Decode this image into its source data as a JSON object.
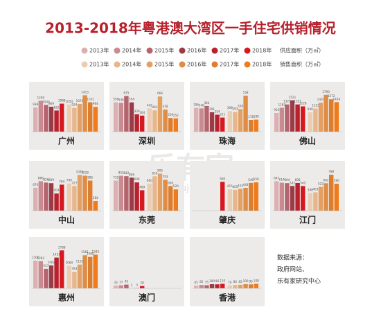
{
  "title": "2013-2018年粤港澳大湾区一手住宅供销情况",
  "legend": {
    "rows": [
      {
        "label": "供应面积（万㎡）",
        "items": [
          {
            "name": "2013年",
            "color": "#dcb0b3"
          },
          {
            "name": "2014年",
            "color": "#c98a90"
          },
          {
            "name": "2015年",
            "color": "#b4646d"
          },
          {
            "name": "2016年",
            "color": "#9c3b48"
          },
          {
            "name": "2017年",
            "color": "#b9212d"
          },
          {
            "name": "2018年",
            "color": "#d7191f"
          }
        ]
      },
      {
        "label": "销售面积（万㎡）",
        "items": [
          {
            "name": "2013年",
            "color": "#ebcdb1"
          },
          {
            "name": "2014年",
            "color": "#e7b68a"
          },
          {
            "name": "2015年",
            "color": "#e3a065"
          },
          {
            "name": "2016年",
            "color": "#df8d45"
          },
          {
            "name": "2017年",
            "color": "#dd7d2e"
          },
          {
            "name": "2018年",
            "color": "#ef7b1b"
          }
        ]
      }
    ]
  },
  "watermark": [
    "乐有家",
    "leyoujia.com"
  ],
  "source": [
    "数据来源：",
    "政府网站、",
    "乐有家研究中心"
  ],
  "chart_data": [
    {
      "type": "bar",
      "title": "广州",
      "ylim": [
        0,
        1560
      ],
      "supply": [
        938,
        1200,
        1040,
        969,
        822,
        1088
      ],
      "sales": [
        1054,
        924,
        1074,
        1415,
        1141,
        964
      ]
    },
    {
      "type": "bar",
      "title": "深圳",
      "ylim": [
        0,
        760
      ],
      "supply": [
        556,
        546,
        675,
        554,
        329,
        304
      ],
      "sales": [
        442,
        403,
        666,
        418,
        259,
        252
      ]
    },
    {
      "type": "bar",
      "title": "珠海",
      "ylim": [
        0,
        600
      ],
      "supply": [
        356,
        348,
        384,
        291,
        254,
        211
      ],
      "sales": [
        308,
        293,
        338,
        538,
        176,
        180
      ]
    },
    {
      "type": "bar",
      "title": "佛山",
      "ylim": [
        0,
        1950
      ],
      "supply": [
        910,
        1162,
        1321,
        1521,
        1321,
        1228
      ],
      "sales": [
        940,
        1123,
        1407,
        1790,
        1572,
        1434
      ]
    },
    {
      "type": "bar",
      "title": "中山",
      "ylim": [
        0,
        1180
      ],
      "supply": [
        676,
        866,
        826,
        809,
        504,
        764
      ],
      "sales": [
        799,
        727,
        1049,
        1028,
        885,
        284
      ]
    },
    {
      "type": "bar",
      "title": "东莞",
      "ylim": [
        0,
        980
      ],
      "supply": [
        735,
        852,
        842,
        806,
        690,
        499
      ],
      "sales": [
        660,
        839,
        905,
        753,
        600,
        520
      ]
    },
    {
      "type": "bar",
      "title": "肇庆",
      "ylim": [
        0,
        780
      ],
      "supply": [
        null,
        null,
        null,
        null,
        null,
        560
      ],
      "sales": [
        415,
        405,
        425,
        444,
        540,
        550
      ]
    },
    {
      "type": "bar",
      "title": "江门",
      "ylim": [
        0,
        880
      ],
      "supply": [
        647,
        614,
        604,
        542,
        608,
        540
      ],
      "sales": [
        388,
        403,
        522,
        602,
        788,
        590
      ]
    },
    {
      "type": "bar",
      "title": "惠州",
      "ylim": [
        0,
        1960
      ],
      "supply": [
        1306,
        1282,
        917,
        1082,
        1451,
        1788
      ],
      "sales": [
        1060,
        783,
        1120,
        1561,
        1480,
        1585
      ]
    },
    {
      "type": "bar",
      "title": "澳门",
      "ylim": [
        0,
        500
      ],
      "supply": [
        33,
        37,
        45,
        1,
        3,
        28
      ],
      "sales": [
        null,
        null,
        null,
        null,
        null,
        null
      ]
    },
    {
      "type": "bar",
      "title": "香港",
      "ylim": [
        0,
        1000
      ],
      "supply": [
        65,
        82,
        75,
        100,
        96,
        110
      ],
      "sales": [
        70,
        80,
        85,
        100,
        95,
        108
      ]
    }
  ]
}
